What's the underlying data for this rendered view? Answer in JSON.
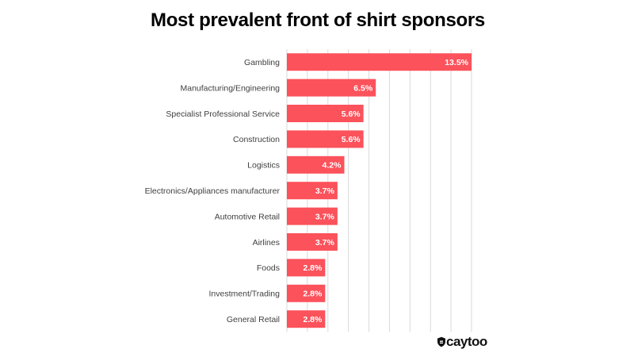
{
  "chart_data": {
    "type": "bar",
    "orientation": "horizontal",
    "title": "Most prevalent front of shirt sponsors",
    "xlabel": "",
    "ylabel": "",
    "xlim": [
      0,
      14
    ],
    "grid": true,
    "gridlines_x": [
      0,
      1.5,
      3,
      4.5,
      6,
      7.5,
      9,
      10.5,
      12,
      13.5
    ],
    "bar_color": "#fb525b",
    "categories": [
      "Gambling",
      "Manufacturing/Engineering",
      "Specialist Professional Service",
      "Construction",
      "Logistics",
      "Electronics/Appliances manufacturer",
      "Automotive Retail",
      "Airlines",
      "Foods",
      "Investment/Trading",
      "General Retail"
    ],
    "values": [
      13.5,
      6.5,
      5.6,
      5.6,
      4.2,
      3.7,
      3.7,
      3.7,
      2.8,
      2.8,
      2.8
    ],
    "value_labels": [
      "13.5%",
      "6.5%",
      "5.6%",
      "5.6%",
      "4.2%",
      "3.7%",
      "3.7%",
      "3.7%",
      "2.8%",
      "2.8%",
      "2.8%"
    ]
  },
  "brand": {
    "name": "caytoo",
    "icon": "shield-logo-icon"
  },
  "colors": {
    "bar": "#fb525b",
    "grid": "#d9d9d9",
    "category_text": "#404040",
    "title_text": "#000000"
  }
}
